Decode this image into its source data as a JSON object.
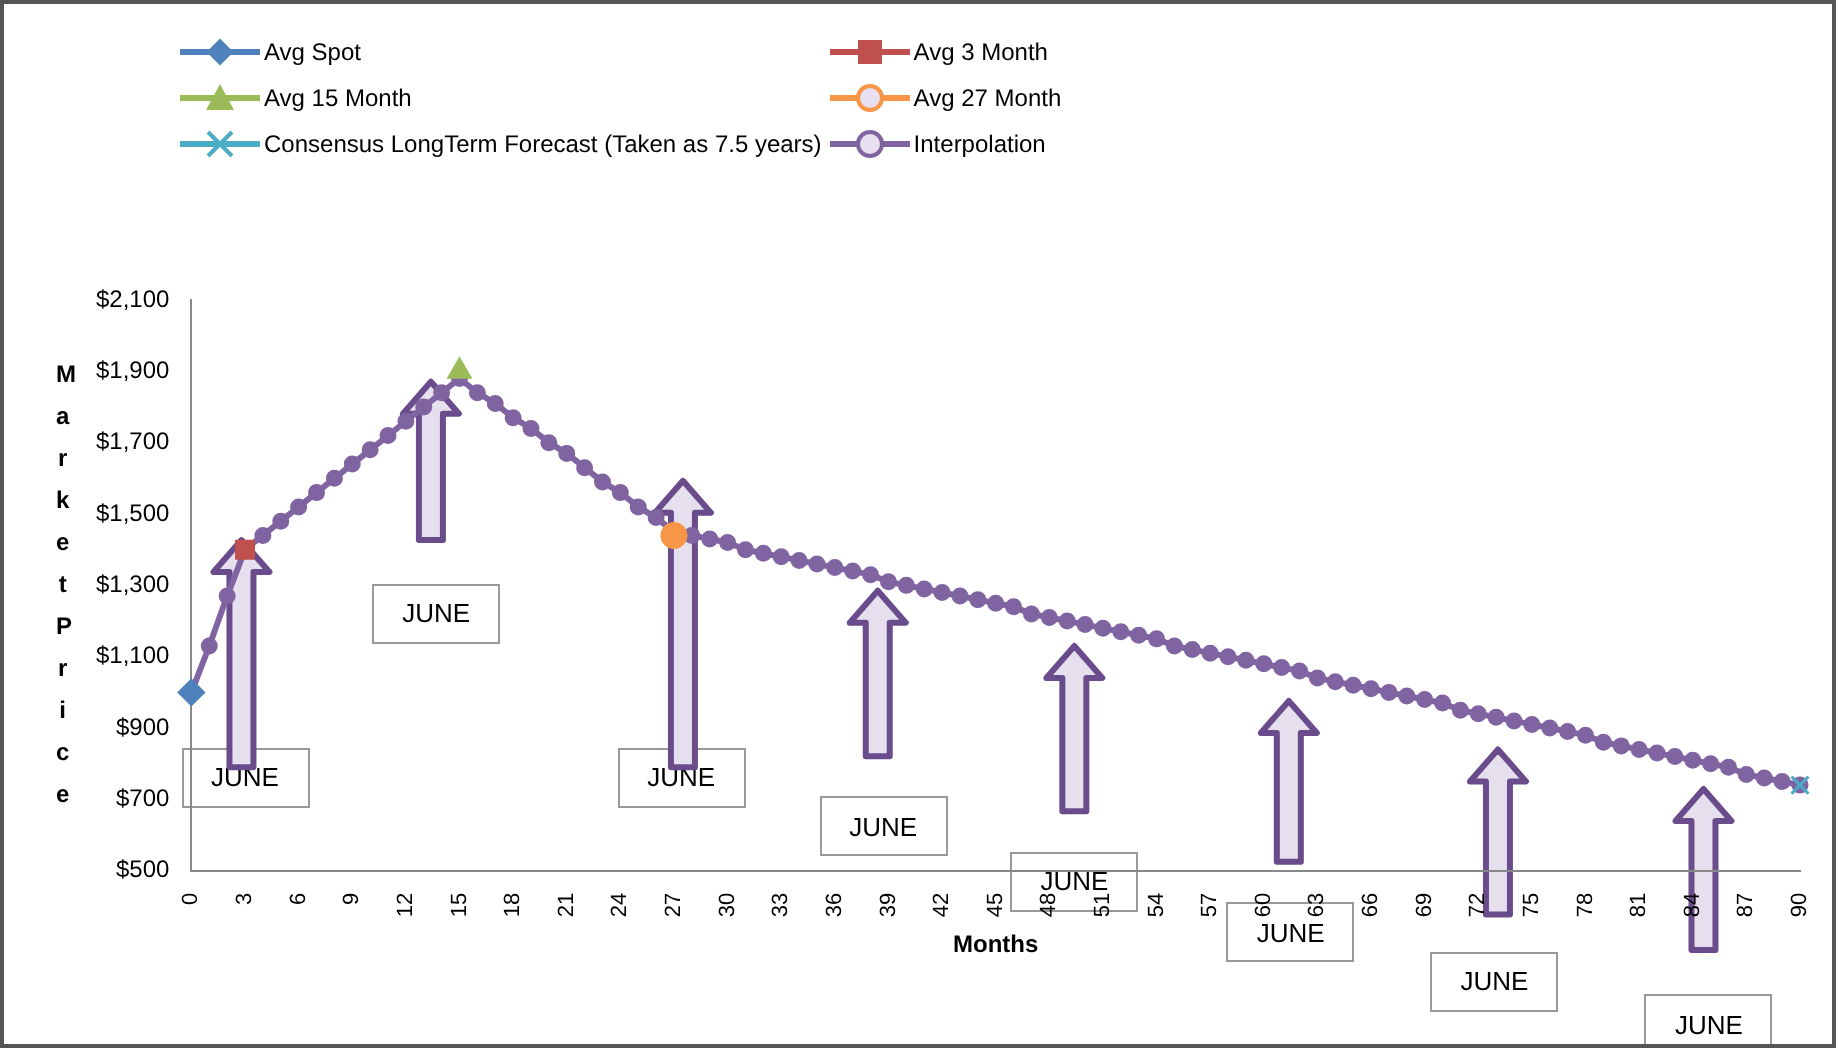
{
  "chart_data": {
    "type": "line",
    "xlabel": "Months",
    "ylabel": "Market Price",
    "categories": [
      "0",
      null,
      null,
      "3",
      null,
      null,
      "6",
      null,
      null,
      "9",
      null,
      null,
      "12",
      null,
      null,
      "15",
      null,
      null,
      "18",
      null,
      null,
      "21",
      null,
      null,
      "24",
      null,
      null,
      "27",
      null,
      null,
      "30",
      null,
      null,
      "33",
      null,
      null,
      "36",
      null,
      null,
      "39",
      null,
      null,
      "42",
      null,
      null,
      "45",
      null,
      null,
      "48",
      null,
      null,
      "51",
      null,
      null,
      "54",
      null,
      null,
      "57",
      null,
      null,
      "60",
      null,
      null,
      "63",
      null,
      null,
      "66",
      null,
      null,
      "69",
      null,
      null,
      "72",
      null,
      null,
      "75",
      null,
      null,
      "78",
      null,
      null,
      "81",
      null,
      null,
      "84",
      null,
      null,
      "87",
      null,
      null,
      "90"
    ],
    "ylim": [
      500,
      2100
    ],
    "yticks": [
      {
        "value": 500,
        "label": "$500"
      },
      {
        "value": 700,
        "label": "$700"
      },
      {
        "value": 900,
        "label": "$900"
      },
      {
        "value": 1100,
        "label": "$1,100"
      },
      {
        "value": 1300,
        "label": "$1,300"
      },
      {
        "value": 1500,
        "label": "$1,500"
      },
      {
        "value": 1700,
        "label": "$1,700"
      },
      {
        "value": 1900,
        "label": "$1,900"
      },
      {
        "value": 2100,
        "label": "$2,100"
      }
    ],
    "grid": false,
    "legend": "top",
    "series": [
      {
        "name": "Avg Spot",
        "color": "#4f81bd",
        "marker": "diamond",
        "x": [
          "0"
        ],
        "values": [
          1000
        ]
      },
      {
        "name": "Avg 3 Month",
        "color": "#c0504d",
        "marker": "square",
        "x": [
          "3"
        ],
        "values": [
          1400
        ]
      },
      {
        "name": "Avg 15 Month",
        "color": "#9bbb59",
        "marker": "triangle",
        "x": [
          "15"
        ],
        "values": [
          1900
        ]
      },
      {
        "name": "Avg 27 Month",
        "color": "#f79646",
        "marker": "circle",
        "x": [
          "27"
        ],
        "values": [
          1440
        ]
      },
      {
        "name": "Consensus LongTerm Forecast (Taken as 7.5 years)",
        "color": "#4bacc6",
        "marker": "cross",
        "x": [
          "90"
        ],
        "values": [
          740
        ]
      },
      {
        "name": "Interpolation",
        "color": "#8064a2",
        "marker": "circle",
        "values": [
          1000,
          1130,
          1270,
          1400,
          1440,
          1480,
          1520,
          1560,
          1600,
          1640,
          1680,
          1720,
          1760,
          1800,
          1840,
          1880,
          1840,
          1810,
          1770,
          1740,
          1700,
          1670,
          1630,
          1590,
          1560,
          1520,
          1490,
          1450,
          1440,
          1430,
          1420,
          1400,
          1390,
          1380,
          1370,
          1360,
          1350,
          1340,
          1330,
          1310,
          1300,
          1290,
          1280,
          1270,
          1260,
          1250,
          1240,
          1220,
          1210,
          1200,
          1190,
          1180,
          1170,
          1160,
          1150,
          1130,
          1120,
          1110,
          1100,
          1090,
          1080,
          1070,
          1060,
          1040,
          1030,
          1020,
          1010,
          1000,
          990,
          980,
          970,
          950,
          940,
          930,
          920,
          910,
          900,
          890,
          880,
          860,
          850,
          840,
          830,
          820,
          810,
          800,
          790,
          770,
          760,
          750,
          740
        ]
      }
    ],
    "annotations": [
      "JUNE",
      "JUNE",
      "JUNE",
      "JUNE",
      "JUNE",
      "JUNE",
      "JUNE",
      "JUNE"
    ]
  }
}
